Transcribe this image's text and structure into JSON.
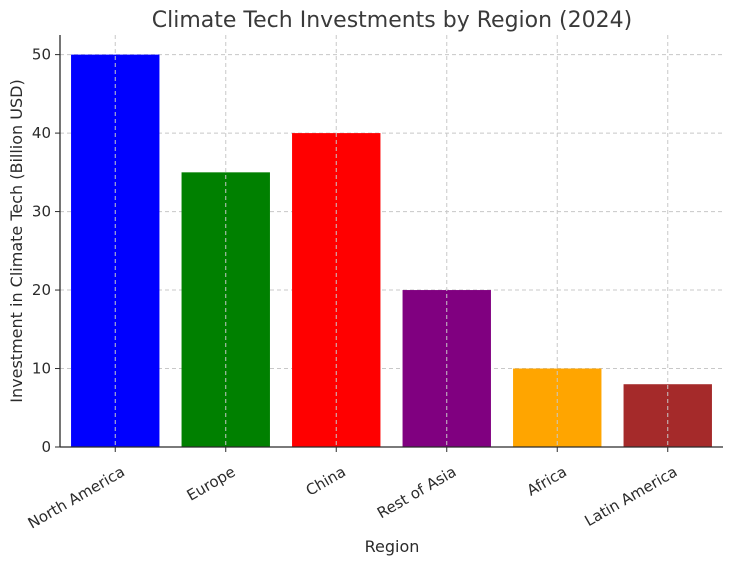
{
  "chart_data": {
    "type": "bar",
    "title": "Climate Tech Investments by Region (2024)",
    "xlabel": "Region",
    "ylabel": "Investment in Climate Tech (Billion USD)",
    "categories": [
      "North America",
      "Europe",
      "China",
      "Rest of Asia",
      "Africa",
      "Latin America"
    ],
    "values": [
      50,
      35,
      40,
      20,
      10,
      8
    ],
    "colors": [
      "#0000ff",
      "#008000",
      "#ff0000",
      "#800080",
      "#ffa500",
      "#a52a2a"
    ],
    "ylim": [
      0,
      52.5
    ],
    "yticks": [
      0,
      10,
      20,
      30,
      40,
      50
    ],
    "grid": true,
    "legend": "none"
  }
}
